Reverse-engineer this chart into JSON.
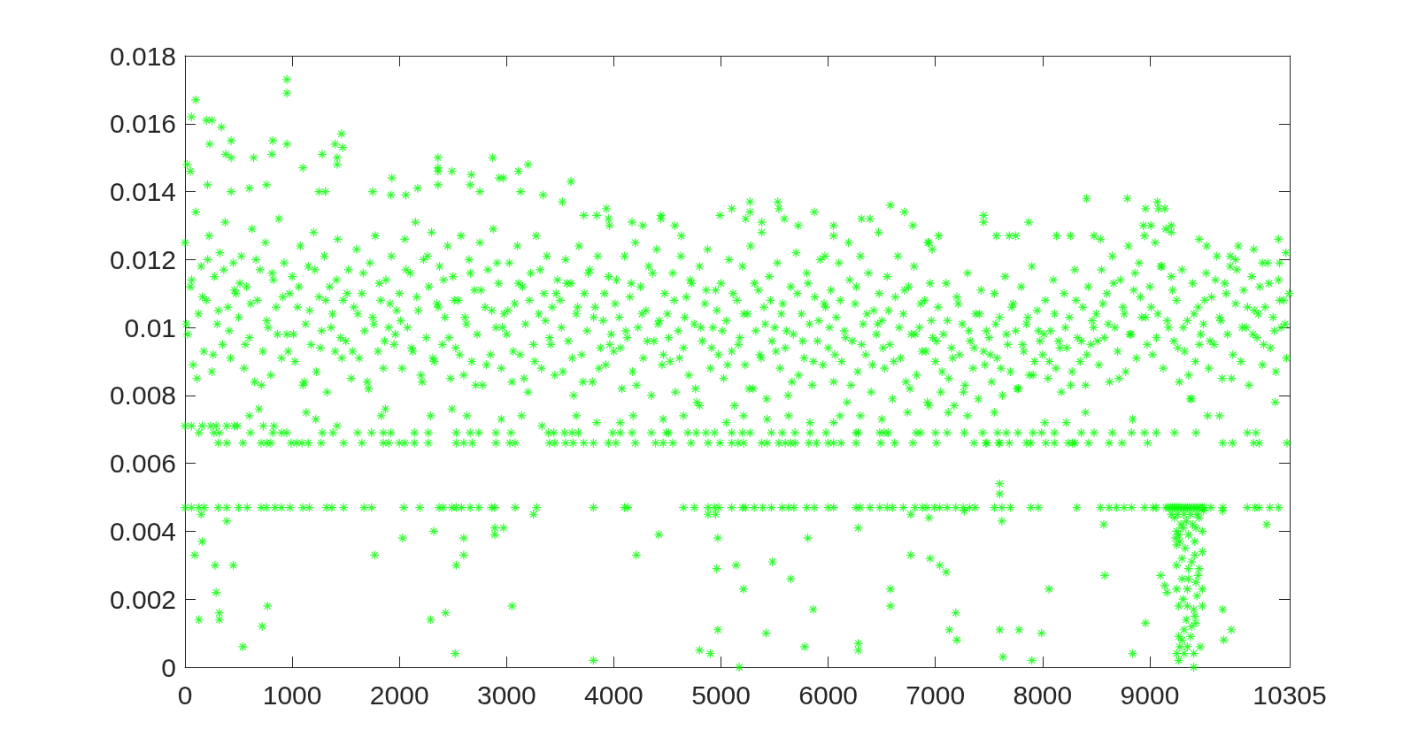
{
  "chart_data": {
    "type": "scatter",
    "color": "#00ff00",
    "marker": "star",
    "grid": false,
    "xlim": [
      0,
      10305
    ],
    "xticks": [
      0,
      1000,
      2000,
      3000,
      4000,
      5000,
      6000,
      7000,
      8000,
      9000,
      10305
    ],
    "ylim": [
      0,
      0.018
    ],
    "yticks": [
      0,
      0.002,
      0.004,
      0.006,
      0.008,
      0.01,
      0.012,
      0.014,
      0.016,
      0.018
    ],
    "x": [
      0,
      25,
      50,
      75,
      100,
      125,
      150,
      175,
      200,
      225,
      250,
      275,
      300,
      325,
      350,
      375,
      400,
      425,
      450,
      475,
      500,
      525,
      550,
      575,
      600,
      625,
      650,
      675,
      700,
      725,
      750,
      775,
      800,
      825,
      850,
      875,
      900,
      925,
      950,
      975,
      1000,
      1025,
      1050,
      1075,
      1100,
      1125,
      1150,
      1175,
      1200,
      1225,
      1250,
      1275,
      1300,
      1325,
      1350,
      1375,
      1400,
      1425,
      1450,
      1475,
      1500,
      1525,
      1550,
      1575,
      1600,
      1625,
      1650,
      1675,
      1700,
      1725,
      1750,
      1775,
      1800,
      1825,
      1850,
      1875,
      1900,
      1925,
      1950,
      1975,
      2000,
      2025,
      2050,
      2075,
      2100,
      2125,
      2150,
      2175,
      2200,
      2225,
      2250,
      2275,
      2300,
      2325,
      2350,
      2375,
      2400,
      2425,
      2450,
      2475,
      2500,
      2525,
      2550,
      2575,
      2600,
      2625,
      2650,
      2675,
      2700,
      2725,
      2750,
      2775,
      2800,
      2825,
      2850,
      2875,
      2900,
      2925,
      2950,
      2975,
      3000,
      3025,
      3050,
      3075,
      3100,
      3125,
      3150,
      3175,
      3200,
      3225,
      3250,
      3275,
      3300,
      3325,
      3350,
      3375,
      3400,
      3425,
      3450,
      3475,
      3500,
      3525,
      3550,
      3575,
      3600,
      3625,
      3650,
      3675,
      3700,
      3725,
      3750,
      3775,
      3800,
      3825,
      3850,
      3875,
      3900,
      3925,
      3950,
      3975,
      4000,
      4025,
      4050,
      4075,
      4100,
      4125,
      4150,
      4175,
      4200,
      4225,
      4250,
      4275,
      4300,
      4325,
      4350,
      4375,
      4400,
      4425,
      4450,
      4475,
      4500,
      4525,
      4550,
      4575,
      4600,
      4625,
      4650,
      4675,
      4700,
      4725,
      4750,
      4775,
      4800,
      4825,
      4850,
      4875,
      4900,
      4925,
      4950,
      4975,
      5000,
      5025,
      5050,
      5075,
      5100,
      5125,
      5150,
      5175,
      5200,
      5225,
      5250,
      5275,
      5300,
      5325,
      5350,
      5375,
      5400,
      5425,
      5450,
      5475,
      5500,
      5525,
      5550,
      5575,
      5600,
      5625,
      5650,
      5675,
      5700,
      5725,
      5750,
      5775,
      5800,
      5825,
      5850,
      5875,
      5900,
      5925,
      5950,
      5975,
      6000,
      6025,
      6050,
      6075,
      6100,
      6125,
      6150,
      6175,
      6200,
      6225,
      6250,
      6275,
      6300,
      6325,
      6350,
      6375,
      6400,
      6425,
      6450,
      6475,
      6500,
      6525,
      6550,
      6575,
      6600,
      6625,
      6650,
      6675,
      6700,
      6725,
      6750,
      6775,
      6800,
      6825,
      6850,
      6875,
      6900,
      6925,
      6950,
      6975,
      7000,
      7025,
      7050,
      7075,
      7100,
      7125,
      7150,
      7175,
      7200,
      7225,
      7250,
      7275,
      7300,
      7325,
      7350,
      7375,
      7400,
      7425,
      7450,
      7475,
      7500,
      7525,
      7550,
      7575,
      7600,
      7625,
      7650,
      7675,
      7700,
      7725,
      7750,
      7775,
      7800,
      7825,
      7850,
      7875,
      7900,
      7925,
      7950,
      7975,
      8000,
      8025,
      8050,
      8075,
      8100,
      8125,
      8150,
      8175,
      8200,
      8225,
      8250,
      8275,
      8300,
      8325,
      8350,
      8375,
      8400,
      8425,
      8450,
      8475,
      8500,
      8525,
      8550,
      8575,
      8600,
      8625,
      8650,
      8675,
      8700,
      8725,
      8750,
      8775,
      8800,
      8825,
      8850,
      8875,
      8900,
      8925,
      8950,
      8975,
      9000,
      9025,
      9050,
      9075,
      9100,
      9125,
      9150,
      9175,
      9200,
      9225,
      9250,
      9275,
      9300,
      9325,
      9350,
      9375,
      9400,
      9425,
      9450,
      9475,
      9500,
      9525,
      9550,
      9575,
      9600,
      9625,
      9650,
      9675,
      9700,
      9725,
      9750,
      9775,
      9800,
      9825,
      9850,
      9875,
      9900,
      9925,
      9950,
      9975,
      10000,
      10025,
      10050,
      10075,
      10100,
      10125,
      10150,
      10175,
      10200,
      10225,
      10250,
      10275,
      10300,
      12,
      62,
      112,
      162,
      212,
      262,
      312,
      362,
      412,
      462,
      512,
      562,
      612,
      662,
      712,
      762,
      812,
      862,
      912,
      962,
      1012,
      1062,
      1112,
      1162,
      1212,
      1262,
      1312,
      1362,
      1412,
      1462,
      1512,
      1562,
      1612,
      1662,
      1712,
      1762,
      1812,
      1862,
      1912,
      1962,
      2012,
      2062,
      2112,
      2162,
      2212,
      2262,
      2312,
      2362,
      2412,
      2462,
      2512,
      2562,
      2612,
      2662,
      2712,
      2762,
      2812,
      2862,
      2912,
      2962,
      3012,
      3062,
      3112,
      3162,
      3212,
      3262,
      3312,
      3362,
      3412,
      3462,
      3512,
      3562,
      3612,
      3662,
      3712,
      3762,
      3812,
      3862,
      3912,
      3962,
      4012,
      4062,
      4112,
      4162,
      4212,
      4262,
      4312,
      4362,
      4412,
      4462,
      4512,
      4562,
      4612,
      4662,
      4712,
      4762,
      4812,
      4862,
      4912,
      4962,
      5012,
      5062,
      5112,
      5162,
      5212,
      5262,
      5312,
      5362,
      5412,
      5462,
      5512,
      5562,
      5612,
      5662,
      5712,
      5762,
      5812,
      5862,
      5912,
      5962,
      6012,
      6062,
      6112,
      6162,
      6212,
      6262,
      6312,
      6362,
      6412,
      6462,
      6512,
      6562,
      6612,
      6662,
      6712,
      6762,
      6812,
      6862,
      6912,
      6962,
      7012,
      7062,
      7112,
      7162,
      7212,
      7262,
      7312,
      7362,
      7412,
      7462,
      7512,
      7562,
      7612,
      7662,
      7712,
      7762,
      7812,
      7862,
      7912,
      7962,
      8012,
      8062,
      8112,
      8162,
      8212,
      8262,
      8312,
      8362,
      8412,
      8462,
      8512,
      8562,
      8612,
      8662,
      8712,
      8762,
      8812,
      8862,
      8912,
      8962,
      9012,
      9062,
      9112,
      9162,
      9212,
      9262,
      9312,
      9362,
      9412,
      9462,
      9512,
      9562,
      9612,
      9662,
      9712,
      9762,
      9812,
      9862,
      9912,
      9962,
      10012,
      10062,
      10112,
      10162,
      10212,
      10262,
      950,
      950,
      100,
      60,
      200,
      250,
      340,
      1460,
      230,
      430,
      820,
      950,
      380,
      430,
      640,
      810,
      1280,
      1400,
      1420,
      1420,
      1470,
      20,
      50,
      2360,
      2360,
      2360,
      2360,
      2870,
      3200,
      2490,
      2670,
      2930,
      2970,
      3110,
      1930,
      1100,
      210,
      760,
      430,
      600,
      1250,
      1310,
      1750,
      1920,
      2170,
      2060,
      3340,
      2750,
      3130,
      2660,
      3600,
      3520,
      3930,
      3840,
      3720,
      3950,
      3960,
      4170,
      4270,
      4440,
      4440,
      4570,
      4630,
      4990,
      5100,
      5270,
      5270,
      5230,
      5530,
      5540,
      5590,
      5380,
      5380,
      5870,
      5720,
      6050,
      6050,
      6580,
      6710,
      6790,
      6310,
      6390,
      6470,
      6930,
      6190,
      5970,
      8410,
      8790,
      9070,
      9080,
      9140,
      8960,
      8940,
      9010,
      9200,
      9200,
      7450,
      7450,
      7870,
      7030,
      6940,
      6970,
      7570,
      7690,
      7750,
      8130,
      8260,
      8480,
      8540,
      9460,
      9530,
      10200,
      9970,
      10270,
      10210,
      9750,
      9800,
      10050,
      600,
      690,
      1130,
      1220,
      1830,
      1870,
      2290,
      2630,
      2490,
      3140,
      2950,
      3650,
      3840,
      4060,
      4180,
      4460,
      4650,
      4800,
      5050,
      5210,
      5430,
      5630,
      5830,
      6050,
      6110,
      6300,
      6500,
      6740,
      6940,
      7120,
      7300,
      7550,
      8020,
      8220,
      8400,
      8840,
      9540,
      9650,
      10170,
      9390,
      0,
      60,
      160,
      240,
      290,
      390,
      460,
      490,
      730,
      830,
      1420,
      3330,
      130,
      270,
      320,
      610,
      820,
      900,
      950,
      1280,
      1380,
      1610,
      1740,
      1850,
      1920,
      2140,
      2270,
      2530,
      2660,
      2740,
      2900,
      3040,
      3390,
      3440,
      3540,
      3610,
      3670,
      3990,
      4060,
      4170,
      4350,
      4490,
      4510,
      4690,
      4770,
      4860,
      4940,
      5100,
      5200,
      5270,
      5470,
      5570,
      5690,
      5830,
      5980,
      6260,
      6280,
      6480,
      6520,
      6560,
      6820,
      6860,
      7000,
      7110,
      7270,
      7440,
      7580,
      7660,
      7770,
      7910,
      7990,
      8110,
      8360,
      8480,
      8650,
      8830,
      8950,
      9060,
      9230,
      9430,
      9910,
      9990,
      310,
      390,
      540,
      710,
      760,
      800,
      990,
      1040,
      1090,
      1150,
      1270,
      1480,
      1650,
      1850,
      1900,
      2000,
      2050,
      2140,
      2270,
      2530,
      2600,
      2680,
      2900,
      3030,
      3080,
      3400,
      3450,
      3550,
      3620,
      3720,
      3810,
      3950,
      4020,
      4200,
      4390,
      4460,
      4550,
      4720,
      4880,
      4990,
      5100,
      5160,
      5210,
      5380,
      5430,
      5540,
      5600,
      5650,
      5690,
      5820,
      5890,
      6000,
      6050,
      6120,
      6260,
      6490,
      6620,
      6790,
      7010,
      7360,
      7470,
      7480,
      7590,
      7600,
      7690,
      7850,
      7890,
      8030,
      8110,
      8240,
      8280,
      8300,
      8430,
      8620,
      8740,
      8980,
      9680,
      9770,
      9970,
      10020,
      10280,
      0,
      60,
      130,
      180,
      310,
      390,
      500,
      580,
      710,
      760,
      840,
      900,
      980,
      1100,
      1160,
      1320,
      1370,
      1480,
      1670,
      1740,
      2040,
      2190,
      2370,
      2410,
      2490,
      2530,
      2580,
      2660,
      2740,
      2860,
      2890,
      3080,
      3280,
      3810,
      4100,
      4130,
      4650,
      4750,
      4880,
      4940,
      4980,
      5100,
      5200,
      5230,
      5310,
      5390,
      5470,
      5570,
      5630,
      5680,
      5800,
      5870,
      6000,
      6050,
      6260,
      6300,
      6390,
      6480,
      6550,
      6600,
      6700,
      6810,
      6880,
      6920,
      6990,
      7040,
      7110,
      7190,
      7260,
      7320,
      7370,
      7550,
      7620,
      7700,
      7890,
      7960,
      8320,
      8540,
      8620,
      8690,
      8760,
      8830,
      8950,
      9030,
      9060,
      9150,
      9170,
      9190,
      9210,
      9230,
      9250,
      9270,
      9290,
      9310,
      9330,
      9350,
      9370,
      9390,
      9410,
      9430,
      9450,
      9470,
      9490,
      9510,
      9570,
      9680,
      9910,
      9980,
      10020,
      10120,
      10200,
      150,
      390,
      3250,
      4880,
      4950,
      6770,
      6940,
      7270,
      7600,
      7600,
      7620,
      8570,
      10090,
      9680,
      9200,
      9260,
      9320,
      9380,
      9440,
      9500,
      160,
      90,
      280,
      450,
      290,
      320,
      320,
      130,
      770,
      720,
      540,
      1770,
      2030,
      2320,
      2290,
      2430,
      2520,
      2530,
      2600,
      2600,
      2890,
      2890,
      2970,
      3050,
      3810,
      4210,
      4420,
      4970,
      4960,
      5140,
      5210,
      5480,
      5650,
      5810,
      5860,
      6280,
      6580,
      6580,
      6770,
      6950,
      4970,
      5420,
      5780,
      6280,
      6280,
      4800,
      4900,
      5170,
      7040,
      7100,
      7190,
      7130,
      7200,
      7600,
      7780,
      7990,
      7630,
      7900,
      8060,
      8580,
      8840,
      8960,
      9100,
      9680,
      9760,
      9690,
      9140,
      9160,
      9250,
      9310,
      9360,
      9430,
      9490,
      9240,
      9280,
      9420,
      9250,
      9490,
      9420,
      9300,
      9250,
      9360,
      9460,
      9300,
      9360,
      9430,
      9250,
      9350,
      9490,
      9270,
      9350,
      9490,
      9410,
      9420,
      9340,
      9430,
      9320,
      9270,
      9380,
      9280,
      9350,
      9470,
      9250,
      9320,
      9410,
      9270,
      9410,
      9230,
      9290,
      9340,
      9400,
      9460,
      9270,
      9330,
      9390,
      9450,
      9310,
      9440,
      9300,
      9390
    ],
    "values": [
      0.0125,
      0.0098,
      0.0112,
      0.0089,
      0.0134,
      0.0104,
      0.0118,
      0.0093,
      0.0108,
      0.0127,
      0.0087,
      0.0115,
      0.0101,
      0.0122,
      0.0095,
      0.0131,
      0.0106,
      0.0091,
      0.0119,
      0.011,
      0.0103,
      0.0121,
      0.0088,
      0.0112,
      0.0097,
      0.0129,
      0.0084,
      0.0108,
      0.0117,
      0.0093,
      0.0125,
      0.01,
      0.0086,
      0.0114,
      0.0106,
      0.0132,
      0.0091,
      0.0119,
      0.0098,
      0.011,
      0.0115,
      0.009,
      0.0106,
      0.0124,
      0.0083,
      0.0101,
      0.0118,
      0.0095,
      0.0128,
      0.0087,
      0.0109,
      0.0099,
      0.0121,
      0.0081,
      0.0112,
      0.0104,
      0.0093,
      0.0126,
      0.0097,
      0.0108,
      0.0096,
      0.0117,
      0.0085,
      0.0106,
      0.0123,
      0.0091,
      0.011,
      0.0099,
      0.0084,
      0.0119,
      0.0103,
      0.0127,
      0.0093,
      0.0108,
      0.0088,
      0.0114,
      0.01,
      0.0121,
      0.0095,
      0.0105,
      0.011,
      0.0088,
      0.0126,
      0.01,
      0.0116,
      0.0093,
      0.0131,
      0.0105,
      0.0086,
      0.012,
      0.0097,
      0.0112,
      0.0128,
      0.009,
      0.0107,
      0.0118,
      0.0095,
      0.0103,
      0.0124,
      0.0085,
      0.0115,
      0.0094,
      0.0108,
      0.0127,
      0.0086,
      0.0101,
      0.012,
      0.009,
      0.0111,
      0.0098,
      0.0125,
      0.0083,
      0.0106,
      0.0117,
      0.0092,
      0.0129,
      0.01,
      0.0113,
      0.0088,
      0.0104,
      0.0098,
      0.0119,
      0.0084,
      0.0107,
      0.0124,
      0.0092,
      0.0112,
      0.0101,
      0.0081,
      0.0116,
      0.0095,
      0.0127,
      0.0104,
      0.0088,
      0.011,
      0.0121,
      0.0097,
      0.0106,
      0.0086,
      0.0114,
      0.0108,
      0.0087,
      0.012,
      0.0096,
      0.0113,
      0.008,
      0.0104,
      0.0124,
      0.0092,
      0.011,
      0.0099,
      0.0117,
      0.0084,
      0.0106,
      0.0121,
      0.0094,
      0.0102,
      0.0089,
      0.0115,
      0.0098,
      0.0093,
      0.0114,
      0.0103,
      0.0082,
      0.0121,
      0.0097,
      0.0109,
      0.0087,
      0.0125,
      0.01,
      0.0112,
      0.0091,
      0.0105,
      0.0118,
      0.008,
      0.0096,
      0.0123,
      0.0102,
      0.0089,
      0.011,
      0.0104,
      0.009,
      0.0116,
      0.0081,
      0.0099,
      0.0121,
      0.0094,
      0.0109,
      0.0086,
      0.0113,
      0.0101,
      0.0078,
      0.0118,
      0.0096,
      0.0107,
      0.0123,
      0.0088,
      0.01,
      0.0111,
      0.0092,
      0.0113,
      0.0085,
      0.0102,
      0.012,
      0.0093,
      0.0077,
      0.0108,
      0.0097,
      0.0118,
      0.0089,
      0.0104,
      0.0124,
      0.0082,
      0.0099,
      0.0111,
      0.0091,
      0.0106,
      0.0079,
      0.0115,
      0.0096,
      0.01,
      0.0119,
      0.0088,
      0.0107,
      0.0094,
      0.008,
      0.0112,
      0.0098,
      0.0122,
      0.0086,
      0.0104,
      0.0091,
      0.0116,
      0.0101,
      0.0083,
      0.0109,
      0.0096,
      0.012,
      0.0089,
      0.0106,
      0.0094,
      0.0111,
      0.0084,
      0.0103,
      0.0119,
      0.009,
      0.0099,
      0.0078,
      0.0114,
      0.0096,
      0.0107,
      0.0087,
      0.0121,
      0.0101,
      0.0092,
      0.0116,
      0.0081,
      0.0105,
      0.0098,
      0.011,
      0.0102,
      0.0088,
      0.0115,
      0.0095,
      0.0079,
      0.0109,
      0.0121,
      0.0091,
      0.0104,
      0.0084,
      0.0112,
      0.0098,
      0.0118,
      0.0086,
      0.01,
      0.0093,
      0.0108,
      0.0078,
      0.0113,
      0.0097,
      0.009,
      0.0106,
      0.0081,
      0.0098,
      0.0113,
      0.0085,
      0.0094,
      0.0077,
      0.0109,
      0.0092,
      0.0101,
      0.0083,
      0.0116,
      0.0096,
      0.0088,
      0.0104,
      0.0079,
      0.0111,
      0.0093,
      0.0099,
      0.0097,
      0.0084,
      0.011,
      0.0091,
      0.0103,
      0.008,
      0.0115,
      0.0095,
      0.0087,
      0.0107,
      0.0099,
      0.0082,
      0.0112,
      0.0093,
      0.0101,
      0.0086,
      0.0118,
      0.009,
      0.0105,
      0.0096,
      0.0092,
      0.0108,
      0.0085,
      0.0099,
      0.0114,
      0.0088,
      0.0096,
      0.0081,
      0.011,
      0.0094,
      0.0103,
      0.0087,
      0.0117,
      0.0097,
      0.009,
      0.0106,
      0.0083,
      0.0112,
      0.0095,
      0.01,
      0.0104,
      0.0089,
      0.0117,
      0.0097,
      0.011,
      0.0084,
      0.0121,
      0.01,
      0.0093,
      0.0114,
      0.0106,
      0.0087,
      0.0124,
      0.0098,
      0.0111,
      0.0091,
      0.0119,
      0.0103,
      0.0127,
      0.0095,
      0.0112,
      0.0092,
      0.0125,
      0.0104,
      0.0118,
      0.0088,
      0.0129,
      0.01,
      0.0115,
      0.0096,
      0.0108,
      0.0084,
      0.0117,
      0.0093,
      0.0102,
      0.0079,
      0.0113,
      0.009,
      0.0106,
      0.0098,
      0.0101,
      0.0116,
      0.0088,
      0.0109,
      0.0095,
      0.0121,
      0.0103,
      0.0085,
      0.0113,
      0.0098,
      0.0118,
      0.0092,
      0.0107,
      0.0124,
      0.009,
      0.0111,
      0.01,
      0.0083,
      0.0115,
      0.0105,
      0.0097,
      0.0112,
      0.0089,
      0.0106,
      0.0119,
      0.0094,
      0.0103,
      0.0087,
      0.0114,
      0.01,
      0.0108,
      0.0091,
      0.011,
      0.0101,
      0.0114,
      0.0085,
      0.0109,
      0.012,
      0.0092,
      0.0105,
      0.0117,
      0.0099,
      0.0111,
      0.0113,
      0.0095,
      0.0107,
      0.012,
      0.0083,
      0.0102,
      0.0116,
      0.0098,
      0.0109,
      0.0093,
      0.0098,
      0.0112,
      0.0084,
      0.0105,
      0.0117,
      0.0094,
      0.0108,
      0.01,
      0.0114,
      0.0091,
      0.011,
      0.0093,
      0.0104,
      0.0116,
      0.0082,
      0.0101,
      0.0113,
      0.0096,
      0.0107,
      0.0098,
      0.0102,
      0.0117,
      0.0094,
      0.0109,
      0.0084,
      0.0121,
      0.0091,
      0.0106,
      0.0114,
      0.0097,
      0.0108,
      0.0092,
      0.0103,
      0.0116,
      0.0083,
      0.0111,
      0.0089,
      0.0105,
      0.0119,
      0.01,
      0.0105,
      0.0093,
      0.0113,
      0.0085,
      0.0108,
      0.009,
      0.0117,
      0.0102,
      0.0095,
      0.011,
      0.01,
      0.0113,
      0.0091,
      0.0106,
      0.0084,
      0.0116,
      0.0103,
      0.0088,
      0.011,
      0.0095,
      0.0107,
      0.0094,
      0.0099,
      0.0113,
      0.0083,
      0.0104,
      0.0096,
      0.0116,
      0.0101,
      0.0092,
      0.0097,
      0.0108,
      0.0091,
      0.0103,
      0.0114,
      0.0082,
      0.01,
      0.0111,
      0.0094,
      0.0105,
      0.0099,
      0.0089,
      0.011,
      0.0095,
      0.0104,
      0.0082,
      0.0113,
      0.0092,
      0.0101,
      0.0108,
      0.0093,
      0.0104,
      0.0099,
      0.0084,
      0.011,
      0.0096,
      0.0113,
      0.009,
      0.0102,
      0.0107,
      0.01,
      0.0092,
      0.0108,
      0.0097,
      0.0083,
      0.0112,
      0.0095,
      0.0104,
      0.0089,
      0.0101,
      0.0094,
      0.0105,
      0.009,
      0.01,
      0.0111,
      0.0082,
      0.0098,
      0.0107,
      0.0093,
      0.0102,
      0.0096,
      0.0087,
      0.0102,
      0.0091,
      0.0107,
      0.0081,
      0.0099,
      0.0094,
      0.0104,
      0.0089,
      0.0092,
      0.0101,
      0.0088,
      0.0098,
      0.0106,
      0.0082,
      0.0095,
      0.0103,
      0.0086,
      0.0099,
      0.0098,
      0.009,
      0.0104,
      0.0094,
      0.01,
      0.0083,
      0.0108,
      0.0096,
      0.0092,
      0.0102,
      0.0096,
      0.0107,
      0.0101,
      0.0113,
      0.0085,
      0.0104,
      0.0098,
      0.0116,
      0.0109,
      0.0103,
      0.0106,
      0.0097,
      0.0118,
      0.0102,
      0.0111,
      0.0094,
      0.01,
      0.0086,
      0.0104,
      0.0095,
      0.0108,
      0.0096,
      0.0114,
      0.0102,
      0.011,
      0.0085,
      0.0117,
      0.01,
      0.0106,
      0.0098,
      0.0104,
      0.0095,
      0.0113,
      0.0099,
      0.0108,
      0.0101,
      0.0173,
      0.0169,
      0.0167,
      0.0162,
      0.0161,
      0.0161,
      0.0159,
      0.0157,
      0.0154,
      0.0155,
      0.0155,
      0.0154,
      0.0151,
      0.015,
      0.015,
      0.0151,
      0.0151,
      0.0154,
      0.015,
      0.0148,
      0.0153,
      0.0148,
      0.0146,
      0.015,
      0.0147,
      0.0146,
      0.0142,
      0.015,
      0.0148,
      0.0146,
      0.0145,
      0.0144,
      0.0144,
      0.0146,
      0.0144,
      0.0147,
      0.0142,
      0.0142,
      0.014,
      0.0141,
      0.014,
      0.014,
      0.014,
      0.0139,
      0.0141,
      0.0139,
      0.0139,
      0.014,
      0.014,
      0.0142,
      0.0143,
      0.0137,
      0.0135,
      0.0133,
      0.0133,
      0.0132,
      0.013,
      0.0131,
      0.013,
      0.0133,
      0.0132,
      0.013,
      0.0127,
      0.0133,
      0.0135,
      0.0137,
      0.0134,
      0.0132,
      0.0137,
      0.0135,
      0.0132,
      0.0131,
      0.0128,
      0.0134,
      0.013,
      0.013,
      0.0127,
      0.0136,
      0.0134,
      0.013,
      0.0132,
      0.0132,
      0.0128,
      0.0125,
      0.0125,
      0.0121,
      0.0138,
      0.0138,
      0.0137,
      0.0135,
      0.0135,
      0.0135,
      0.013,
      0.013,
      0.013,
      0.0128,
      0.0133,
      0.0131,
      0.0131,
      0.0127,
      0.0125,
      0.0123,
      0.0127,
      0.0127,
      0.0127,
      0.0127,
      0.0127,
      0.0127,
      0.0126,
      0.0126,
      0.0124,
      0.0126,
      0.0123,
      0.0122,
      0.0119,
      0.0121,
      0.012,
      0.0119,
      0.0074,
      0.0076,
      0.0075,
      0.0073,
      0.0074,
      0.0076,
      0.0074,
      0.0074,
      0.0076,
      0.0074,
      0.0073,
      0.0074,
      0.0072,
      0.0072,
      0.0074,
      0.0073,
      0.0074,
      0.0077,
      0.0072,
      0.0074,
      0.0073,
      0.0074,
      0.0072,
      0.0072,
      0.0074,
      0.0074,
      0.0073,
      0.0075,
      0.0077,
      0.0075,
      0.0074,
      0.0075,
      0.0072,
      0.0072,
      0.0075,
      0.0073,
      0.0074,
      0.0074,
      0.0078,
      0.0079,
      0.0071,
      0.0071,
      0.0071,
      0.0071,
      0.0071,
      0.0071,
      0.0071,
      0.0071,
      0.0071,
      0.0071,
      0.0071,
      0.0071,
      0.0069,
      0.0069,
      0.0069,
      0.0069,
      0.0069,
      0.0069,
      0.0069,
      0.0069,
      0.0069,
      0.0069,
      0.0069,
      0.0069,
      0.0069,
      0.0069,
      0.0069,
      0.0069,
      0.0069,
      0.0069,
      0.0069,
      0.0069,
      0.0069,
      0.0069,
      0.0069,
      0.0069,
      0.0069,
      0.0069,
      0.0069,
      0.0069,
      0.0069,
      0.0069,
      0.0069,
      0.0069,
      0.0069,
      0.0069,
      0.0069,
      0.0069,
      0.0069,
      0.0069,
      0.0069,
      0.0069,
      0.0069,
      0.0069,
      0.0069,
      0.0069,
      0.0069,
      0.0069,
      0.0069,
      0.0069,
      0.0069,
      0.0069,
      0.0069,
      0.0069,
      0.0069,
      0.0069,
      0.0069,
      0.0069,
      0.0069,
      0.0069,
      0.0069,
      0.0069,
      0.0069,
      0.0069,
      0.0069,
      0.0069,
      0.0069,
      0.0069,
      0.0069,
      0.0069,
      0.0069,
      0.0069,
      0.0066,
      0.0066,
      0.0066,
      0.0066,
      0.0066,
      0.0066,
      0.0066,
      0.0066,
      0.0066,
      0.0066,
      0.0066,
      0.0066,
      0.0066,
      0.0066,
      0.0066,
      0.0066,
      0.0066,
      0.0066,
      0.0066,
      0.0066,
      0.0066,
      0.0066,
      0.0066,
      0.0066,
      0.0066,
      0.0066,
      0.0066,
      0.0066,
      0.0066,
      0.0066,
      0.0066,
      0.0066,
      0.0066,
      0.0066,
      0.0066,
      0.0066,
      0.0066,
      0.0066,
      0.0066,
      0.0066,
      0.0066,
      0.0066,
      0.0066,
      0.0066,
      0.0066,
      0.0066,
      0.0066,
      0.0066,
      0.0066,
      0.0066,
      0.0066,
      0.0066,
      0.0066,
      0.0066,
      0.0066,
      0.0066,
      0.0066,
      0.0066,
      0.0066,
      0.0066,
      0.0066,
      0.0066,
      0.0066,
      0.0066,
      0.0066,
      0.0066,
      0.0066,
      0.0066,
      0.0066,
      0.0066,
      0.0066,
      0.0066,
      0.0066,
      0.0066,
      0.0066,
      0.0066,
      0.0066,
      0.0066,
      0.0066,
      0.0066,
      0.0066,
      0.0047,
      0.0047,
      0.0047,
      0.0047,
      0.0047,
      0.0047,
      0.0047,
      0.0047,
      0.0047,
      0.0047,
      0.0047,
      0.0047,
      0.0047,
      0.0047,
      0.0047,
      0.0047,
      0.0047,
      0.0047,
      0.0047,
      0.0047,
      0.0047,
      0.0047,
      0.0047,
      0.0047,
      0.0047,
      0.0047,
      0.0047,
      0.0047,
      0.0047,
      0.0047,
      0.0047,
      0.0047,
      0.0047,
      0.0047,
      0.0047,
      0.0047,
      0.0047,
      0.0047,
      0.0047,
      0.0047,
      0.0047,
      0.0047,
      0.0047,
      0.0047,
      0.0047,
      0.0047,
      0.0047,
      0.0047,
      0.0047,
      0.0047,
      0.0047,
      0.0047,
      0.0047,
      0.0047,
      0.0047,
      0.0047,
      0.0047,
      0.0047,
      0.0047,
      0.0047,
      0.0047,
      0.0047,
      0.0047,
      0.0047,
      0.0047,
      0.0047,
      0.0047,
      0.0047,
      0.0047,
      0.0047,
      0.0047,
      0.0047,
      0.0047,
      0.0047,
      0.0047,
      0.0047,
      0.0047,
      0.0047,
      0.0047,
      0.0047,
      0.0047,
      0.0047,
      0.0047,
      0.0047,
      0.0047,
      0.0047,
      0.0047,
      0.0047,
      0.0047,
      0.0047,
      0.0047,
      0.0047,
      0.0047,
      0.0047,
      0.0047,
      0.0047,
      0.0047,
      0.0047,
      0.0047,
      0.0047,
      0.0047,
      0.0047,
      0.0047,
      0.0047,
      0.0047,
      0.0047,
      0.0047,
      0.0047,
      0.0047,
      0.0047,
      0.0047,
      0.0045,
      0.0043,
      0.0045,
      0.0045,
      0.0045,
      0.0045,
      0.0044,
      0.0046,
      0.0054,
      0.0051,
      0.0043,
      0.0042,
      0.0042,
      0.0046,
      0.0045,
      0.0045,
      0.0045,
      0.0045,
      0.0045,
      0.0046,
      0.0037,
      0.0033,
      0.003,
      0.003,
      0.0022,
      0.0016,
      0.0014,
      0.0014,
      0.0018,
      0.0012,
      0.0006,
      0.0033,
      0.0038,
      0.004,
      0.0014,
      0.0016,
      0.0004,
      0.003,
      0.0033,
      0.0038,
      0.0041,
      0.0039,
      0.0041,
      0.0018,
      0.0002,
      0.0033,
      0.0039,
      0.0038,
      0.0029,
      0.003,
      0.0023,
      0.0031,
      0.0026,
      0.0038,
      0.0017,
      0.0041,
      0.0023,
      0.0018,
      0.0033,
      0.0032,
      0.0011,
      0.001,
      0.0006,
      0.0007,
      0.0005,
      0.0005,
      0.0004,
      0,
      0.003,
      0.0028,
      0.0016,
      0.0011,
      0.0008,
      0.0011,
      0.0011,
      0.001,
      0.0003,
      0.0002,
      0.0023,
      0.0027,
      0.0004,
      0.0013,
      0.0027,
      0.0017,
      0.0011,
      0.0008,
      0.0024,
      0.0022,
      0.004,
      0.0041,
      0.0039,
      0.0041,
      0.004,
      0.0038,
      0.0037,
      0.0037,
      0.0036,
      0.0034,
      0.0033,
      0.0032,
      0.003,
      0.0029,
      0.0029,
      0.0026,
      0.0026,
      0.0025,
      0.0023,
      0.0023,
      0.0023,
      0.0018,
      0.0018,
      0.0018,
      0.0017,
      0.0015,
      0.0014,
      0.0013,
      0.0011,
      0.0009,
      0.0009,
      0.0006,
      0.0006,
      0.0006,
      0.0004,
      0.0004,
      0.0004,
      0.0002,
      0,
      0.0044,
      0.0042,
      0.0043,
      0.0042,
      0.0044,
      0.0039,
      0.0035,
      0.0031,
      0.0027,
      0.002,
      0.0021,
      0.0008,
      0.0012
    ]
  }
}
